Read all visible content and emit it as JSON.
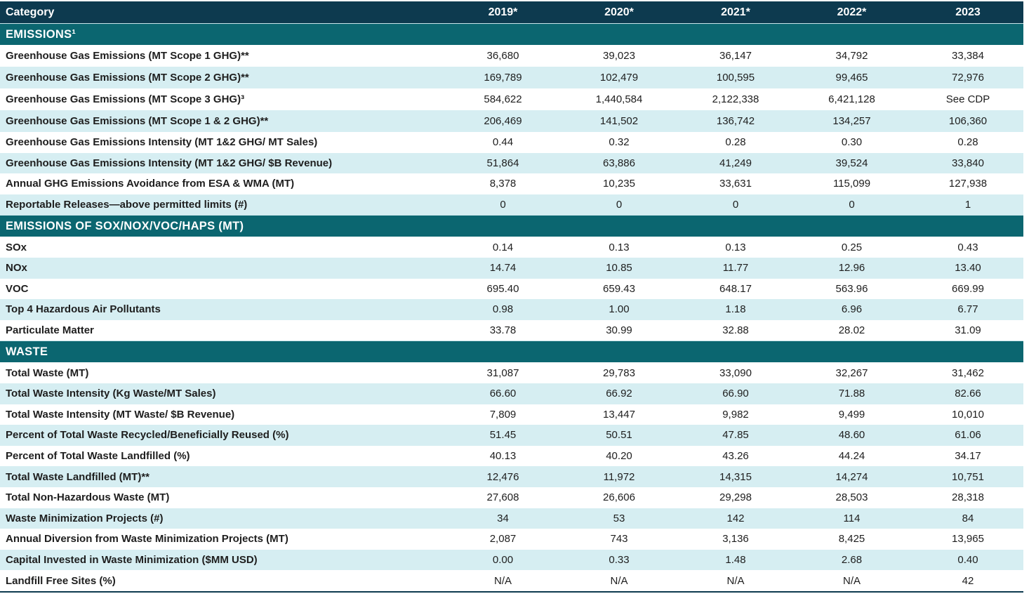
{
  "table": {
    "header": [
      "Category",
      "2019*",
      "2020*",
      "2021*",
      "2022*",
      "2023"
    ],
    "sections": [
      {
        "title": "EMISSIONS¹",
        "rows": [
          [
            "Greenhouse Gas Emissions (MT Scope 1 GHG)**",
            "36,680",
            "39,023",
            "36,147",
            "34,792",
            "33,384"
          ],
          [
            "Greenhouse Gas Emissions (MT Scope 2 GHG)**",
            "169,789",
            "102,479",
            "100,595",
            "99,465",
            "72,976"
          ],
          [
            "Greenhouse Gas Emissions (MT Scope 3 GHG)³",
            "584,622",
            "1,440,584",
            "2,122,338",
            "6,421,128",
            "See CDP"
          ],
          [
            "Greenhouse Gas Emissions (MT Scope 1 & 2 GHG)**",
            "206,469",
            "141,502",
            "136,742",
            "134,257",
            "106,360"
          ],
          [
            "Greenhouse Gas Emissions Intensity (MT 1&2 GHG/ MT Sales)",
            "0.44",
            "0.32",
            "0.28",
            "0.30",
            "0.28"
          ],
          [
            "Greenhouse Gas Emissions Intensity (MT 1&2 GHG/ $B Revenue)",
            "51,864",
            "63,886",
            "41,249",
            "39,524",
            "33,840"
          ],
          [
            "Annual GHG Emissions Avoidance from ESA & WMA (MT)",
            "8,378",
            "10,235",
            "33,631",
            "115,099",
            "127,938"
          ],
          [
            "Reportable Releases—above permitted limits (#)",
            "0",
            "0",
            "0",
            "0",
            "1"
          ]
        ]
      },
      {
        "title": "EMISSIONS OF SOX/NOX/VOC/HAPS (MT)",
        "rows": [
          [
            "SOx",
            "0.14",
            "0.13",
            "0.13",
            "0.25",
            "0.43"
          ],
          [
            "NOx",
            "14.74",
            "10.85",
            "11.77",
            "12.96",
            "13.40"
          ],
          [
            "VOC",
            "695.40",
            "659.43",
            "648.17",
            "563.96",
            "669.99"
          ],
          [
            "Top 4 Hazardous Air Pollutants",
            "0.98",
            "1.00",
            "1.18",
            "6.96",
            "6.77"
          ],
          [
            "Particulate Matter",
            "33.78",
            "30.99",
            "32.88",
            "28.02",
            "31.09"
          ]
        ]
      },
      {
        "title": "WASTE",
        "rows": [
          [
            "Total Waste (MT)",
            "31,087",
            "29,783",
            "33,090",
            "32,267",
            "31,462"
          ],
          [
            "Total Waste Intensity (Kg Waste/MT Sales)",
            "66.60",
            "66.92",
            "66.90",
            "71.88",
            "82.66"
          ],
          [
            "Total Waste Intensity (MT Waste/ $B Revenue)",
            "7,809",
            "13,447",
            "9,982",
            "9,499",
            "10,010"
          ],
          [
            "Percent of Total Waste Recycled/Beneficially Reused (%)",
            "51.45",
            "50.51",
            "47.85",
            "48.60",
            "61.06"
          ],
          [
            "Percent of Total Waste Landfilled (%)",
            "40.13",
            "40.20",
            "43.26",
            "44.24",
            "34.17"
          ],
          [
            "Total Waste Landfilled (MT)**",
            "12,476",
            "11,972",
            "14,315",
            "14,274",
            "10,751"
          ],
          [
            "Total Non-Hazardous Waste (MT)",
            "27,608",
            "26,606",
            "29,298",
            "28,503",
            "28,318"
          ],
          [
            "Waste Minimization Projects (#)",
            "34",
            "53",
            "142",
            "114",
            "84"
          ],
          [
            "Annual Diversion from Waste Minimization Projects (MT)",
            "2,087",
            "743",
            "3,136",
            "8,425",
            "13,965"
          ],
          [
            "Capital Invested in Waste Minimization ($MM USD)",
            "0.00",
            "0.33",
            "1.48",
            "2.68",
            "0.40"
          ],
          [
            "Landfill Free Sites (%)",
            "N/A",
            "N/A",
            "N/A",
            "N/A",
            "42"
          ]
        ]
      }
    ]
  }
}
